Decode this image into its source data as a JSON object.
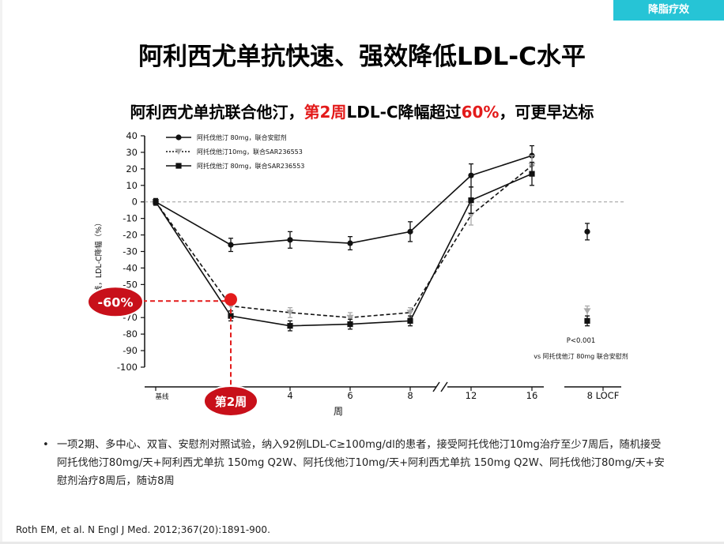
{
  "header": {
    "tag": "降脂疗效"
  },
  "slide": {
    "title": "阿利西尤单抗快速、强效降低LDL-C水平",
    "subtitle": {
      "part1": "阿利西尤单抗联合他汀，",
      "red1": "第2周",
      "part2": "LDL-C降幅超过",
      "red2": "60%",
      "part3": "，可更早达标"
    },
    "bullet": "一项2期、多中心、双盲、安慰剂对照试验，纳入92例LDL-C≥100mg/dl的患者，接受阿托伐他汀10mg治疗至少7周后，随机接受阿托伐他汀80mg/天+阿利西尤单抗 150mg Q2W、阿托伐他汀10mg/天+阿利西尤单抗 150mg Q2W、阿托伐他汀80mg/天+安慰剂治疗8周后，随访8周",
    "reference": "Roth EM, et al. N Engl J Med. 2012;367(20):1891-900."
  },
  "chart_data": {
    "type": "line",
    "ylabel": "基线，LDL-C降幅（%）",
    "xlabel": "周",
    "ylim": [
      -100,
      40
    ],
    "yticks": [
      40,
      30,
      20,
      10,
      0,
      -10,
      -20,
      -30,
      -40,
      -50,
      -60,
      -70,
      -80,
      -90,
      -100
    ],
    "x": [
      "基线",
      "2",
      "4",
      "6",
      "8",
      "12",
      "16"
    ],
    "xticks": [
      "基线",
      "4",
      "6",
      "8",
      "12",
      "16"
    ],
    "locf_label": "8 LOCF",
    "series": [
      {
        "name": "阿托伐他汀 80mg，联合安慰剂",
        "style": "solid",
        "marker": "circle",
        "color": "#111111",
        "values": [
          0,
          -26,
          -23,
          -25,
          -18,
          16,
          28
        ],
        "err": [
          2,
          4,
          5,
          4,
          6,
          7,
          6
        ],
        "locf": -18,
        "locf_err": 5
      },
      {
        "name": "阿托伐他汀10mg，联合SAR236553",
        "style": "dashed",
        "marker": "triangle",
        "color": "#aaaaaa",
        "values": [
          0,
          -63,
          -67,
          -70,
          -67,
          -8,
          22
        ],
        "err": [
          2,
          3,
          3,
          3,
          3,
          6,
          6
        ],
        "locf": -66,
        "locf_err": 3
      },
      {
        "name": "阿托伐他汀 80mg，联合SAR236553",
        "style": "solid",
        "marker": "square",
        "color": "#111111",
        "values": [
          0,
          -69,
          -75,
          -74,
          -72,
          1,
          17
        ],
        "err": [
          2,
          3,
          3,
          3,
          3,
          8,
          7
        ],
        "locf": -72,
        "locf_err": 3
      }
    ],
    "annotations": {
      "y_callout": "-60%",
      "x_callout": "第2周",
      "pvalue": "P<0.001",
      "comparison": "vs 阿托伐他汀 80mg 联合安慰剂"
    }
  }
}
